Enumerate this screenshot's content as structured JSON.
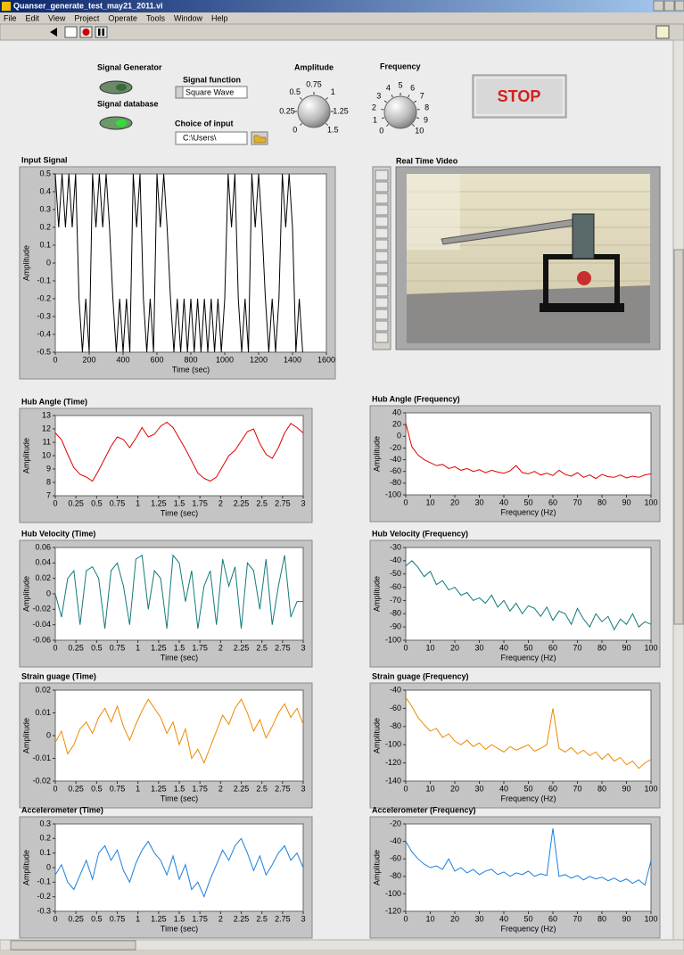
{
  "window": {
    "title": "Quanser_generate_test_may21_2011.vi",
    "menu": [
      "File",
      "Edit",
      "View",
      "Project",
      "Operate",
      "Tools",
      "Window",
      "Help"
    ]
  },
  "controls": {
    "signal_generator": "Signal Generator",
    "signal_database": "Signal database",
    "signal_function": {
      "label": "Signal function",
      "value": "Square Wave"
    },
    "choice_of_input": {
      "label": "Choice of input",
      "value": "C:\\Users\\"
    },
    "amplitude": {
      "label": "Amplitude",
      "ticks": [
        0,
        0.25,
        0.5,
        0.75,
        1,
        1.25,
        1.5
      ]
    },
    "frequency": {
      "label": "Frequency",
      "ticks": [
        0,
        1,
        2,
        3,
        4,
        5,
        6,
        7,
        8,
        9,
        10
      ]
    },
    "stop": "STOP",
    "video_title": "Real Time Video"
  },
  "chart_data": [
    {
      "type": "line",
      "title": "Input Signal",
      "xlabel": "Time (sec)",
      "ylabel": "Amplitude",
      "color": "#000000",
      "xlim": [
        0,
        1600
      ],
      "xticks": [
        0,
        200,
        400,
        600,
        800,
        1000,
        1200,
        1400,
        1600
      ],
      "ylim": [
        -0.5,
        0.5
      ],
      "yticks": [
        -0.5,
        -0.4,
        -0.3,
        -0.2,
        -0.1,
        0,
        0.1,
        0.2,
        0.3,
        0.4,
        0.5
      ],
      "x": [
        0,
        20,
        40,
        60,
        80,
        100,
        120,
        140,
        160,
        180,
        200,
        220,
        240,
        260,
        280,
        300,
        320,
        340,
        360,
        380,
        400,
        420,
        440,
        460,
        480,
        500,
        520,
        540,
        560,
        580,
        600,
        620,
        640,
        660,
        680,
        700,
        720,
        740,
        760,
        780,
        800,
        820,
        840,
        860,
        880,
        900,
        920,
        940,
        960,
        980,
        1000,
        1020,
        1040,
        1060,
        1080,
        1100,
        1120,
        1140,
        1160,
        1180,
        1200,
        1220,
        1240,
        1260,
        1280,
        1300,
        1320,
        1340,
        1360,
        1380,
        1400,
        1420,
        1440,
        1460
      ],
      "values": [
        0.5,
        0.2,
        0.5,
        0.2,
        0.5,
        0.2,
        0.5,
        -0.2,
        -0.5,
        -0.2,
        -0.5,
        0.5,
        0.2,
        0.5,
        0.2,
        0.5,
        0.2,
        -0.2,
        -0.5,
        -0.2,
        -0.5,
        -0.2,
        -0.5,
        0.5,
        0.2,
        0.5,
        -0.2,
        -0.5,
        -0.2,
        -0.5,
        0.5,
        0.2,
        0.5,
        0.2,
        -0.2,
        -0.5,
        -0.2,
        -0.5,
        -0.2,
        -0.5,
        -0.2,
        -0.5,
        -0.2,
        -0.5,
        -0.2,
        -0.5,
        -0.2,
        -0.5,
        -0.2,
        -0.5,
        -0.2,
        0.5,
        0.2,
        0.5,
        -0.2,
        -0.5,
        -0.2,
        -0.5,
        0.5,
        0.2,
        0.5,
        0.2,
        -0.2,
        -0.5,
        -0.2,
        -0.5,
        -0.2,
        0.5,
        0.2,
        0.5,
        0.2,
        -0.5,
        -0.2,
        -0.5
      ]
    },
    {
      "type": "line",
      "title": "Hub Angle (Time)",
      "xlabel": "Time (sec)",
      "ylabel": "Amplitude",
      "color": "#e00000",
      "xlim": [
        0,
        3
      ],
      "xticks": [
        0,
        0.25,
        0.5,
        0.75,
        1,
        1.25,
        1.5,
        1.75,
        2,
        2.25,
        2.5,
        2.75,
        3
      ],
      "ylim": [
        7,
        13
      ],
      "yticks": [
        7,
        8,
        9,
        10,
        11,
        12,
        13
      ],
      "x": [
        0,
        0.075,
        0.15,
        0.225,
        0.3,
        0.375,
        0.45,
        0.525,
        0.6,
        0.675,
        0.75,
        0.825,
        0.9,
        0.975,
        1.05,
        1.125,
        1.2,
        1.275,
        1.35,
        1.425,
        1.5,
        1.575,
        1.65,
        1.725,
        1.8,
        1.875,
        1.95,
        2.025,
        2.1,
        2.175,
        2.25,
        2.325,
        2.4,
        2.475,
        2.55,
        2.625,
        2.7,
        2.775,
        2.85,
        2.925,
        3
      ],
      "values": [
        11.7,
        11.2,
        10.1,
        9.1,
        8.6,
        8.4,
        8.1,
        8.9,
        9.8,
        10.7,
        11.4,
        11.2,
        10.6,
        11.3,
        12.1,
        11.4,
        11.6,
        12.2,
        12.5,
        12.1,
        11.3,
        10.5,
        9.6,
        8.7,
        8.3,
        8.1,
        8.4,
        9.2,
        10,
        10.4,
        11.1,
        11.8,
        12,
        10.9,
        10.1,
        9.8,
        10.6,
        11.7,
        12.4,
        12.1,
        11.7
      ]
    },
    {
      "type": "line",
      "title": "Hub Angle (Frequency)",
      "xlabel": "Frequency (Hz)",
      "ylabel": "Amplitude",
      "color": "#e00000",
      "xlim": [
        0,
        100
      ],
      "xticks": [
        0,
        10,
        20,
        30,
        40,
        50,
        60,
        70,
        80,
        90,
        100
      ],
      "ylim": [
        -100,
        40
      ],
      "yticks": [
        -100,
        -80,
        -60,
        -40,
        -20,
        0,
        20,
        40
      ],
      "x": [
        0,
        2.5,
        5,
        7.5,
        10,
        12.5,
        15,
        17.5,
        20,
        22.5,
        25,
        27.5,
        30,
        32.5,
        35,
        37.5,
        40,
        42.5,
        45,
        47.5,
        50,
        52.5,
        55,
        57.5,
        60,
        62.5,
        65,
        67.5,
        70,
        72.5,
        75,
        77.5,
        80,
        82.5,
        85,
        87.5,
        90,
        92.5,
        95,
        97.5,
        100
      ],
      "values": [
        22,
        -18,
        -32,
        -40,
        -45,
        -50,
        -48,
        -55,
        -52,
        -58,
        -55,
        -60,
        -57,
        -62,
        -58,
        -61,
        -63,
        -59,
        -50,
        -62,
        -64,
        -60,
        -66,
        -63,
        -67,
        -58,
        -65,
        -68,
        -62,
        -70,
        -66,
        -72,
        -65,
        -69,
        -70,
        -66,
        -71,
        -68,
        -70,
        -66,
        -64
      ]
    },
    {
      "type": "line",
      "title": "Hub Velocity (Time)",
      "xlabel": "Time (sec)",
      "ylabel": "Amplitude",
      "color": "#127a7a",
      "xlim": [
        0,
        3
      ],
      "xticks": [
        0,
        0.25,
        0.5,
        0.75,
        1,
        1.25,
        1.5,
        1.75,
        2,
        2.25,
        2.5,
        2.75,
        3
      ],
      "ylim": [
        -0.06,
        0.06
      ],
      "yticks": [
        -0.06,
        -0.04,
        -0.02,
        0,
        0.02,
        0.04,
        0.06
      ],
      "x": [
        0,
        0.075,
        0.15,
        0.225,
        0.3,
        0.375,
        0.45,
        0.525,
        0.6,
        0.675,
        0.75,
        0.825,
        0.9,
        0.975,
        1.05,
        1.125,
        1.2,
        1.275,
        1.35,
        1.425,
        1.5,
        1.575,
        1.65,
        1.725,
        1.8,
        1.875,
        1.95,
        2.025,
        2.1,
        2.175,
        2.25,
        2.325,
        2.4,
        2.475,
        2.55,
        2.625,
        2.7,
        2.775,
        2.85,
        2.925,
        3
      ],
      "values": [
        0,
        -0.03,
        0.02,
        0.03,
        -0.04,
        0.03,
        0.035,
        0.02,
        -0.045,
        0.03,
        0.04,
        0.01,
        -0.04,
        0.045,
        0.05,
        -0.02,
        0.03,
        0.02,
        -0.045,
        0.05,
        0.04,
        -0.01,
        0.03,
        -0.045,
        0.01,
        0.03,
        -0.04,
        0.045,
        0.01,
        0.035,
        -0.045,
        0.04,
        0.03,
        -0.02,
        0.045,
        -0.04,
        0.01,
        0.05,
        -0.03,
        -0.01,
        -0.01
      ]
    },
    {
      "type": "line",
      "title": "Hub Velocity (Frequency)",
      "xlabel": "Frequency (Hz)",
      "ylabel": "Amplitude",
      "color": "#127a7a",
      "xlim": [
        0,
        100
      ],
      "xticks": [
        0,
        10,
        20,
        30,
        40,
        50,
        60,
        70,
        80,
        90,
        100
      ],
      "ylim": [
        -100,
        -30
      ],
      "yticks": [
        -100,
        -90,
        -80,
        -70,
        -60,
        -50,
        -40,
        -30
      ],
      "x": [
        0,
        2.5,
        5,
        7.5,
        10,
        12.5,
        15,
        17.5,
        20,
        22.5,
        25,
        27.5,
        30,
        32.5,
        35,
        37.5,
        40,
        42.5,
        45,
        47.5,
        50,
        52.5,
        55,
        57.5,
        60,
        62.5,
        65,
        67.5,
        70,
        72.5,
        75,
        77.5,
        80,
        82.5,
        85,
        87.5,
        90,
        92.5,
        95,
        97.5,
        100
      ],
      "values": [
        -44,
        -40,
        -45,
        -52,
        -48,
        -58,
        -55,
        -62,
        -60,
        -66,
        -64,
        -70,
        -68,
        -72,
        -66,
        -75,
        -70,
        -78,
        -72,
        -80,
        -74,
        -76,
        -82,
        -75,
        -85,
        -78,
        -80,
        -88,
        -76,
        -84,
        -90,
        -80,
        -86,
        -82,
        -92,
        -84,
        -88,
        -80,
        -90,
        -86,
        -88
      ]
    },
    {
      "type": "line",
      "title": "Strain guage (Time)",
      "xlabel": "Time (sec)",
      "ylabel": "Amplitude",
      "color": "#ee8800",
      "xlim": [
        0,
        3
      ],
      "xticks": [
        0,
        0.25,
        0.5,
        0.75,
        1,
        1.25,
        1.5,
        1.75,
        2,
        2.25,
        2.5,
        2.75,
        3
      ],
      "ylim": [
        -0.02,
        0.02
      ],
      "yticks": [
        -0.02,
        -0.01,
        0,
        0.01,
        0.02
      ],
      "x": [
        0,
        0.075,
        0.15,
        0.225,
        0.3,
        0.375,
        0.45,
        0.525,
        0.6,
        0.675,
        0.75,
        0.825,
        0.9,
        0.975,
        1.05,
        1.125,
        1.2,
        1.275,
        1.35,
        1.425,
        1.5,
        1.575,
        1.65,
        1.725,
        1.8,
        1.875,
        1.95,
        2.025,
        2.1,
        2.175,
        2.25,
        2.325,
        2.4,
        2.475,
        2.55,
        2.625,
        2.7,
        2.775,
        2.85,
        2.925,
        3
      ],
      "values": [
        -0.003,
        0.002,
        -0.008,
        -0.004,
        0.003,
        0.006,
        0.001,
        0.008,
        0.012,
        0.006,
        0.013,
        0.004,
        -0.002,
        0.005,
        0.011,
        0.016,
        0.012,
        0.008,
        0.001,
        0.006,
        -0.004,
        0.003,
        -0.01,
        -0.006,
        -0.012,
        -0.005,
        0.002,
        0.009,
        0.005,
        0.012,
        0.016,
        0.01,
        0.002,
        0.007,
        -0.001,
        0.004,
        0.01,
        0.014,
        0.008,
        0.012,
        0.005
      ]
    },
    {
      "type": "line",
      "title": "Strain guage (Frequency)",
      "xlabel": "Frequency (Hz)",
      "ylabel": "Amplitude",
      "color": "#ee8800",
      "xlim": [
        0,
        100
      ],
      "xticks": [
        0,
        10,
        20,
        30,
        40,
        50,
        60,
        70,
        80,
        90,
        100
      ],
      "ylim": [
        -140,
        -40
      ],
      "yticks": [
        -140,
        -120,
        -100,
        -80,
        -60,
        -40
      ],
      "x": [
        0,
        2.5,
        5,
        7.5,
        10,
        12.5,
        15,
        17.5,
        20,
        22.5,
        25,
        27.5,
        30,
        32.5,
        35,
        37.5,
        40,
        42.5,
        45,
        47.5,
        50,
        52.5,
        55,
        57.5,
        60,
        62.5,
        65,
        67.5,
        70,
        72.5,
        75,
        77.5,
        80,
        82.5,
        85,
        87.5,
        90,
        92.5,
        95,
        97.5,
        100
      ],
      "values": [
        -48,
        -58,
        -70,
        -78,
        -85,
        -82,
        -92,
        -88,
        -96,
        -100,
        -95,
        -102,
        -98,
        -105,
        -100,
        -104,
        -108,
        -102,
        -106,
        -103,
        -100,
        -107,
        -104,
        -100,
        -60,
        -104,
        -108,
        -103,
        -110,
        -106,
        -112,
        -108,
        -116,
        -110,
        -118,
        -114,
        -122,
        -118,
        -126,
        -120,
        -116
      ]
    },
    {
      "type": "line",
      "title": "Accelerometer (Time)",
      "xlabel": "Time (sec)",
      "ylabel": "Amplitude",
      "color": "#1a7fe0",
      "xlim": [
        0,
        3
      ],
      "xticks": [
        0,
        0.25,
        0.5,
        0.75,
        1,
        1.25,
        1.5,
        1.75,
        2,
        2.25,
        2.5,
        2.75,
        3
      ],
      "ylim": [
        -0.3,
        0.3
      ],
      "yticks": [
        -0.3,
        -0.2,
        -0.1,
        0,
        0.1,
        0.2,
        0.3
      ],
      "x": [
        0,
        0.075,
        0.15,
        0.225,
        0.3,
        0.375,
        0.45,
        0.525,
        0.6,
        0.675,
        0.75,
        0.825,
        0.9,
        0.975,
        1.05,
        1.125,
        1.2,
        1.275,
        1.35,
        1.425,
        1.5,
        1.575,
        1.65,
        1.725,
        1.8,
        1.875,
        1.95,
        2.025,
        2.1,
        2.175,
        2.25,
        2.325,
        2.4,
        2.475,
        2.55,
        2.625,
        2.7,
        2.775,
        2.85,
        2.925,
        3
      ],
      "values": [
        -0.05,
        0.02,
        -0.1,
        -0.15,
        -0.05,
        0.05,
        -0.08,
        0.1,
        0.15,
        0.05,
        0.12,
        -0.02,
        -0.1,
        0.03,
        0.12,
        0.18,
        0.1,
        0.05,
        -0.05,
        0.08,
        -0.08,
        0.02,
        -0.15,
        -0.1,
        -0.2,
        -0.08,
        0.02,
        0.12,
        0.05,
        0.15,
        0.2,
        0.1,
        -0.02,
        0.08,
        -0.05,
        0.02,
        0.1,
        0.15,
        0.05,
        0.1,
        0
      ]
    },
    {
      "type": "line",
      "title": "Accelerometer (Frequency)",
      "xlabel": "Frequency (Hz)",
      "ylabel": "Amplitude",
      "color": "#1a7fe0",
      "xlim": [
        0,
        100
      ],
      "xticks": [
        0,
        10,
        20,
        30,
        40,
        50,
        60,
        70,
        80,
        90,
        100
      ],
      "ylim": [
        -120,
        -20
      ],
      "yticks": [
        -120,
        -100,
        -80,
        -60,
        -40,
        -20
      ],
      "x": [
        0,
        2.5,
        5,
        7.5,
        10,
        12.5,
        15,
        17.5,
        20,
        22.5,
        25,
        27.5,
        30,
        32.5,
        35,
        37.5,
        40,
        42.5,
        45,
        47.5,
        50,
        52.5,
        55,
        57.5,
        60,
        62.5,
        65,
        67.5,
        70,
        72.5,
        75,
        77.5,
        80,
        82.5,
        85,
        87.5,
        90,
        92.5,
        95,
        97.5,
        100
      ],
      "values": [
        -40,
        -52,
        -60,
        -66,
        -70,
        -68,
        -72,
        -60,
        -74,
        -70,
        -76,
        -72,
        -78,
        -74,
        -72,
        -78,
        -75,
        -80,
        -76,
        -78,
        -74,
        -80,
        -77,
        -79,
        -25,
        -80,
        -78,
        -82,
        -79,
        -84,
        -80,
        -83,
        -81,
        -85,
        -82,
        -86,
        -83,
        -88,
        -84,
        -90,
        -62
      ]
    }
  ]
}
